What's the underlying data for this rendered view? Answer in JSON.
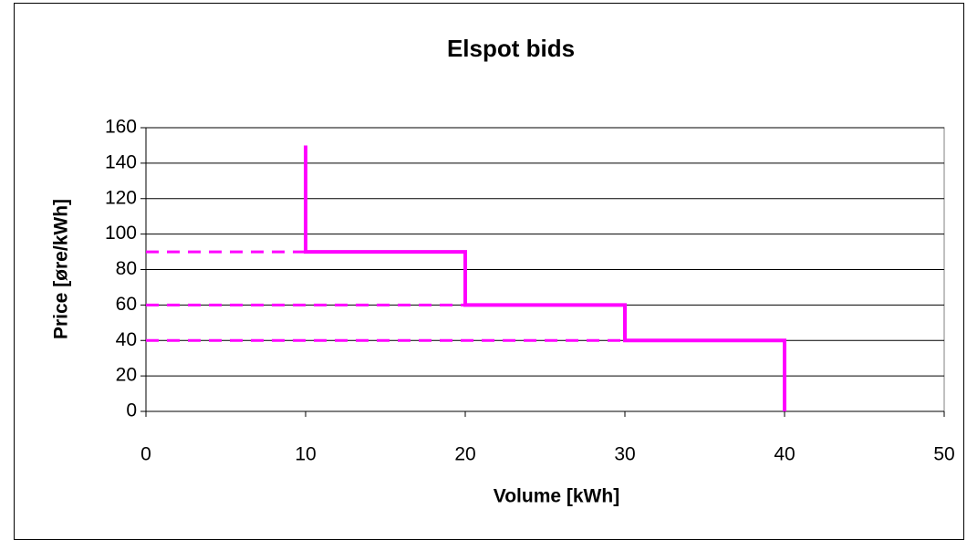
{
  "chart_data": {
    "type": "line",
    "title": "Elspot bids",
    "x_label": "Volume [kWh]",
    "y_label": "Price [øre/kWh]",
    "xlim": [
      0,
      50
    ],
    "xticks": [
      0,
      10,
      20,
      30,
      40,
      50
    ],
    "ylim": [
      0,
      160
    ],
    "yticks": [
      0,
      20,
      40,
      60,
      80,
      100,
      120,
      140,
      160
    ],
    "grid": true,
    "series": [
      {
        "color": "#ff00ff",
        "dashed": false,
        "x": [
          10,
          10,
          20,
          20,
          30,
          30,
          40,
          40
        ],
        "values": [
          150,
          90,
          90,
          60,
          60,
          40,
          40,
          0
        ]
      },
      {
        "color": "#ff00ff",
        "dashed": true,
        "x": [
          0,
          10
        ],
        "values": [
          90,
          90
        ]
      },
      {
        "color": "#ff00ff",
        "dashed": true,
        "x": [
          0,
          20
        ],
        "values": [
          60,
          60
        ]
      },
      {
        "color": "#ff00ff",
        "dashed": true,
        "x": [
          0,
          30
        ],
        "values": [
          40,
          40
        ]
      }
    ]
  }
}
